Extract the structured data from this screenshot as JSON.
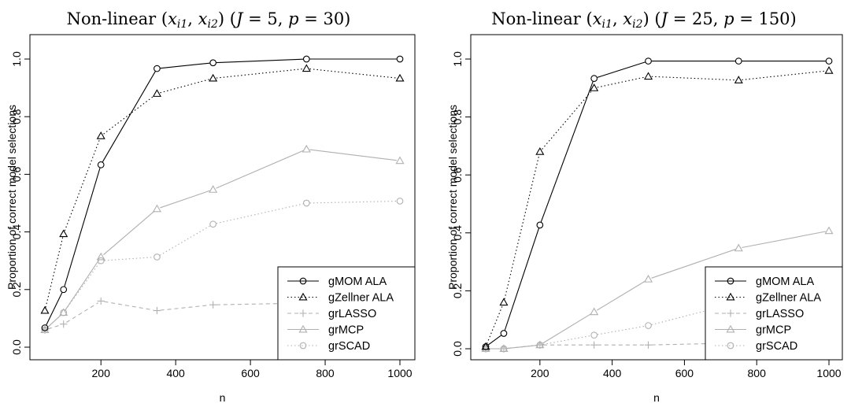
{
  "chart_data": [
    {
      "type": "line",
      "title": {
        "prefix": "Non-linear ",
        "math": "(xi1, xi2)",
        "suffix": " (J = 5, p = 30)"
      },
      "xlabel": "n",
      "ylabel": "Proportion of correct model selections",
      "xlim": [
        50,
        1000
      ],
      "ylim": [
        0,
        1
      ],
      "xticks": [
        "200",
        "400",
        "600",
        "800",
        "1000"
      ],
      "yticks": [
        "0.0",
        "0.2",
        "0.4",
        "0.6",
        "0.8",
        "1.0"
      ],
      "x": [
        50,
        100,
        200,
        350,
        500,
        750,
        1000
      ],
      "legend_position": "bottom-right",
      "series": [
        {
          "name": "gMOM ALA",
          "values": [
            0.067,
            0.2,
            0.633,
            0.967,
            0.987,
            1.0,
            1.0
          ],
          "color": "#000000",
          "dash": "solid",
          "marker": "circle"
        },
        {
          "name": "gZellner ALA",
          "values": [
            0.127,
            0.393,
            0.733,
            0.88,
            0.933,
            0.967,
            0.933
          ],
          "color": "#000000",
          "dash": "dotted",
          "marker": "triangle"
        },
        {
          "name": "grLASSO",
          "values": [
            0.06,
            0.08,
            0.16,
            0.127,
            0.147,
            0.153,
            0.153
          ],
          "color": "#b0b0b0",
          "dash": "dashed",
          "marker": "plus"
        },
        {
          "name": "grMCP",
          "values": [
            0.06,
            0.12,
            0.313,
            0.48,
            0.547,
            0.687,
            0.647
          ],
          "color": "#b0b0b0",
          "dash": "solid",
          "marker": "triangle"
        },
        {
          "name": "grSCAD",
          "values": [
            0.06,
            0.12,
            0.3,
            0.313,
            0.427,
            0.5,
            0.507
          ],
          "color": "#b0b0b0",
          "dash": "dotted",
          "marker": "circle"
        }
      ]
    },
    {
      "type": "line",
      "title": {
        "prefix": "Non-linear ",
        "math": "(xi1, xi2)",
        "suffix": " (J = 25, p = 150)"
      },
      "xlabel": "n",
      "ylabel": "Proportion of correct model selections",
      "xlim": [
        50,
        1000
      ],
      "ylim": [
        0,
        1
      ],
      "xticks": [
        "200",
        "400",
        "600",
        "800",
        "1000"
      ],
      "yticks": [
        "0.0",
        "0.2",
        "0.4",
        "0.6",
        "0.8",
        "1.0"
      ],
      "x": [
        50,
        100,
        200,
        350,
        500,
        750,
        1000
      ],
      "legend_position": "bottom-right",
      "series": [
        {
          "name": "gMOM ALA",
          "values": [
            0.007,
            0.053,
            0.427,
            0.933,
            0.993,
            0.993,
            0.993
          ],
          "color": "#000000",
          "dash": "solid",
          "marker": "circle"
        },
        {
          "name": "gZellner ALA",
          "values": [
            0.007,
            0.16,
            0.68,
            0.9,
            0.94,
            0.927,
            0.96
          ],
          "color": "#000000",
          "dash": "dotted",
          "marker": "triangle"
        },
        {
          "name": "grLASSO",
          "values": [
            0.0,
            0.0,
            0.013,
            0.013,
            0.013,
            0.02,
            0.007
          ],
          "color": "#b0b0b0",
          "dash": "dashed",
          "marker": "plus"
        },
        {
          "name": "grMCP",
          "values": [
            0.0,
            0.0,
            0.013,
            0.127,
            0.24,
            0.347,
            0.407
          ],
          "color": "#b0b0b0",
          "dash": "solid",
          "marker": "triangle"
        },
        {
          "name": "grSCAD",
          "values": [
            0.0,
            0.0,
            0.013,
            0.047,
            0.08,
            0.16,
            0.16
          ],
          "color": "#b0b0b0",
          "dash": "dotted",
          "marker": "circle"
        }
      ]
    }
  ]
}
